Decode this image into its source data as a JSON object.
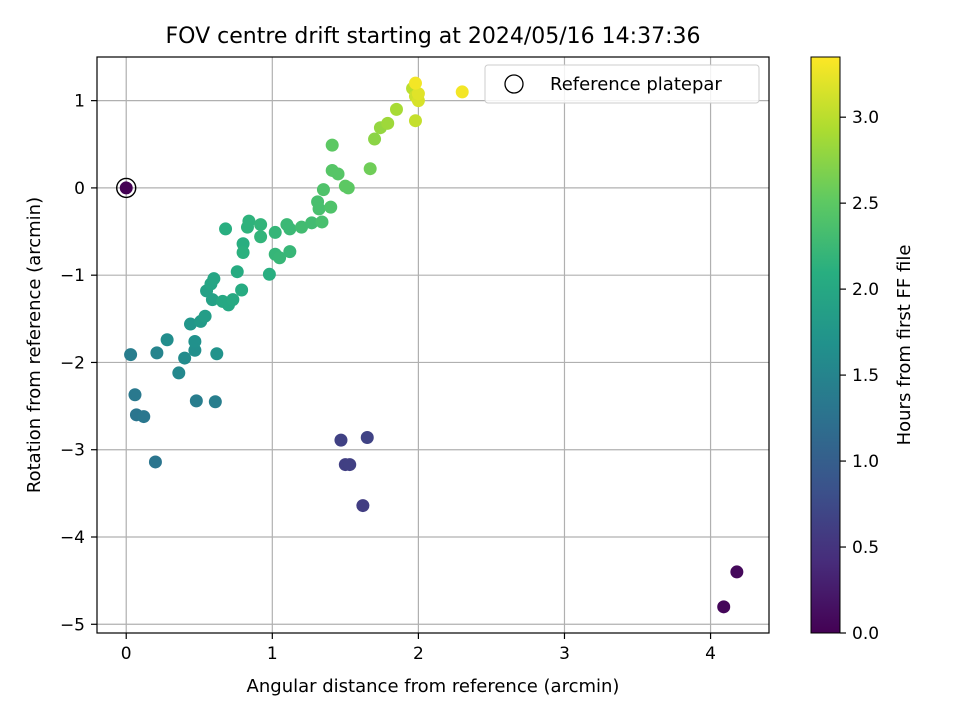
{
  "chart_data": {
    "type": "scatter",
    "title": "FOV centre drift starting at 2024/05/16 14:37:36",
    "xlabel": "Angular distance from reference (arcmin)",
    "ylabel": "Rotation from reference (arcmin)",
    "xlim": [
      -0.2,
      4.4
    ],
    "ylim": [
      -5.1,
      1.5
    ],
    "xticks": [
      0,
      1,
      2,
      3,
      4
    ],
    "yticks": [
      1,
      0,
      -1,
      -2,
      -3,
      -4,
      -5
    ],
    "grid": true,
    "legend": {
      "placement": "top-right",
      "entries": [
        "Reference platepar"
      ]
    },
    "colorbar": {
      "label": "Hours from first FF file",
      "range": [
        0.0,
        3.35
      ],
      "ticks": [
        "0.0",
        "0.5",
        "1.0",
        "1.5",
        "2.0",
        "2.5",
        "3.0"
      ],
      "colormap": "viridis"
    },
    "reference_point": {
      "x": 0.0,
      "y": 0.0
    },
    "points": [
      {
        "x": 0.0,
        "y": 0.0,
        "h": 0.0
      },
      {
        "x": 4.09,
        "y": -4.8,
        "h": 0.05
      },
      {
        "x": 4.18,
        "y": -4.4,
        "h": 0.08
      },
      {
        "x": 1.62,
        "y": -3.64,
        "h": 0.6
      },
      {
        "x": 1.5,
        "y": -3.17,
        "h": 0.62
      },
      {
        "x": 1.53,
        "y": -3.17,
        "h": 0.63
      },
      {
        "x": 1.47,
        "y": -2.89,
        "h": 0.65
      },
      {
        "x": 1.65,
        "y": -2.86,
        "h": 0.67
      },
      {
        "x": 0.2,
        "y": -3.14,
        "h": 1.3
      },
      {
        "x": 0.07,
        "y": -2.6,
        "h": 1.3
      },
      {
        "x": 0.12,
        "y": -2.62,
        "h": 1.32
      },
      {
        "x": 0.06,
        "y": -2.37,
        "h": 1.35
      },
      {
        "x": 0.48,
        "y": -2.44,
        "h": 1.4
      },
      {
        "x": 0.61,
        "y": -2.45,
        "h": 1.42
      },
      {
        "x": 0.03,
        "y": -1.91,
        "h": 1.4
      },
      {
        "x": 0.21,
        "y": -1.89,
        "h": 1.5
      },
      {
        "x": 0.36,
        "y": -2.12,
        "h": 1.55
      },
      {
        "x": 0.4,
        "y": -1.95,
        "h": 1.6
      },
      {
        "x": 0.28,
        "y": -1.74,
        "h": 1.62
      },
      {
        "x": 0.47,
        "y": -1.86,
        "h": 1.65
      },
      {
        "x": 0.47,
        "y": -1.76,
        "h": 1.67
      },
      {
        "x": 0.62,
        "y": -1.9,
        "h": 1.7
      },
      {
        "x": 0.44,
        "y": -1.56,
        "h": 1.75
      },
      {
        "x": 0.51,
        "y": -1.53,
        "h": 1.8
      },
      {
        "x": 0.54,
        "y": -1.47,
        "h": 1.85
      },
      {
        "x": 0.55,
        "y": -1.18,
        "h": 1.9
      },
      {
        "x": 0.59,
        "y": -1.28,
        "h": 1.9
      },
      {
        "x": 0.58,
        "y": -1.1,
        "h": 1.95
      },
      {
        "x": 0.6,
        "y": -1.04,
        "h": 1.97
      },
      {
        "x": 0.66,
        "y": -1.3,
        "h": 2.0
      },
      {
        "x": 0.7,
        "y": -1.34,
        "h": 2.0
      },
      {
        "x": 0.73,
        "y": -1.28,
        "h": 2.02
      },
      {
        "x": 0.79,
        "y": -1.17,
        "h": 2.05
      },
      {
        "x": 0.76,
        "y": -0.96,
        "h": 2.05
      },
      {
        "x": 0.68,
        "y": -0.47,
        "h": 2.1
      },
      {
        "x": 0.8,
        "y": -0.64,
        "h": 2.1
      },
      {
        "x": 0.8,
        "y": -0.74,
        "h": 2.12
      },
      {
        "x": 0.83,
        "y": -0.45,
        "h": 2.15
      },
      {
        "x": 0.84,
        "y": -0.38,
        "h": 2.15
      },
      {
        "x": 0.92,
        "y": -0.42,
        "h": 2.18
      },
      {
        "x": 0.92,
        "y": -0.56,
        "h": 2.18
      },
      {
        "x": 0.98,
        "y": -0.99,
        "h": 2.1
      },
      {
        "x": 1.02,
        "y": -0.51,
        "h": 2.2
      },
      {
        "x": 1.02,
        "y": -0.76,
        "h": 2.2
      },
      {
        "x": 1.05,
        "y": -0.8,
        "h": 2.22
      },
      {
        "x": 1.1,
        "y": -0.42,
        "h": 2.25
      },
      {
        "x": 1.12,
        "y": -0.47,
        "h": 2.25
      },
      {
        "x": 1.12,
        "y": -0.73,
        "h": 2.22
      },
      {
        "x": 1.2,
        "y": -0.45,
        "h": 2.3
      },
      {
        "x": 1.27,
        "y": -0.4,
        "h": 2.3
      },
      {
        "x": 1.31,
        "y": -0.16,
        "h": 2.35
      },
      {
        "x": 1.32,
        "y": -0.24,
        "h": 2.35
      },
      {
        "x": 1.34,
        "y": -0.39,
        "h": 2.35
      },
      {
        "x": 1.35,
        "y": -0.02,
        "h": 2.4
      },
      {
        "x": 1.4,
        "y": -0.22,
        "h": 2.4
      },
      {
        "x": 1.41,
        "y": 0.2,
        "h": 2.45
      },
      {
        "x": 1.45,
        "y": 0.16,
        "h": 2.45
      },
      {
        "x": 1.5,
        "y": 0.02,
        "h": 2.5
      },
      {
        "x": 1.52,
        "y": 0.0,
        "h": 2.5
      },
      {
        "x": 1.41,
        "y": 0.49,
        "h": 2.5
      },
      {
        "x": 1.67,
        "y": 0.22,
        "h": 2.6
      },
      {
        "x": 1.7,
        "y": 0.56,
        "h": 2.75
      },
      {
        "x": 1.74,
        "y": 0.69,
        "h": 2.8
      },
      {
        "x": 1.79,
        "y": 0.74,
        "h": 2.85
      },
      {
        "x": 1.85,
        "y": 0.9,
        "h": 2.9
      },
      {
        "x": 1.96,
        "y": 1.14,
        "h": 3.0
      },
      {
        "x": 1.98,
        "y": 0.77,
        "h": 3.05
      },
      {
        "x": 1.98,
        "y": 1.05,
        "h": 3.1
      },
      {
        "x": 2.0,
        "y": 1.0,
        "h": 3.15
      },
      {
        "x": 2.0,
        "y": 1.08,
        "h": 3.2
      },
      {
        "x": 1.98,
        "y": 1.2,
        "h": 3.3
      },
      {
        "x": 2.3,
        "y": 1.1,
        "h": 3.3
      }
    ]
  }
}
